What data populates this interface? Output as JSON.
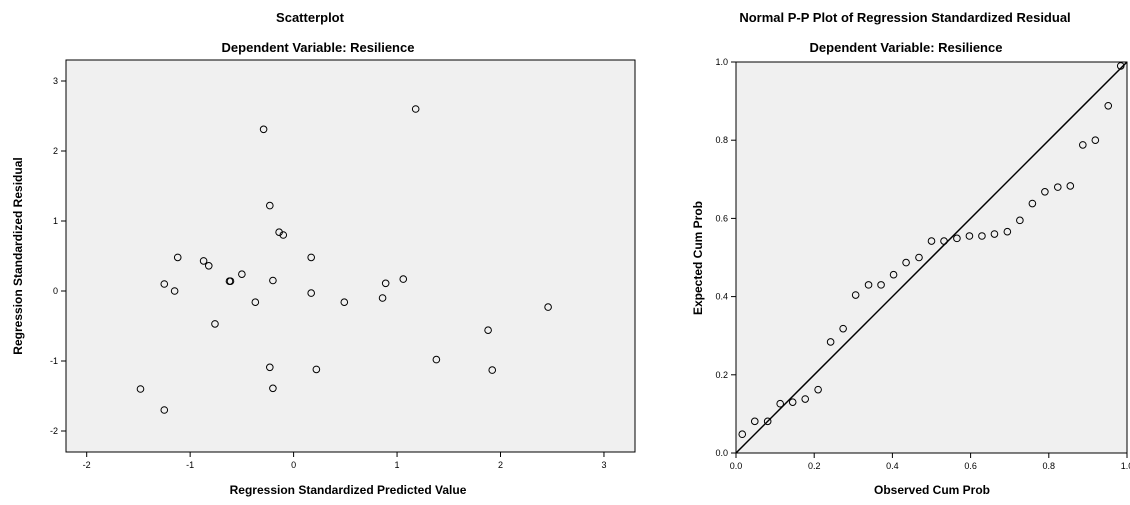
{
  "chart_data": [
    {
      "type": "scatter",
      "title": "Scatterplot",
      "subtitle": "Dependent Variable: Resilience",
      "xlabel": "Regression Standardized Predicted Value",
      "ylabel": "Regression Standardized Residual",
      "xlim": [
        -2.2,
        3.3
      ],
      "ylim": [
        -2.3,
        3.3
      ],
      "xticks": [
        "-2",
        "-1",
        "0",
        "1",
        "2",
        "3"
      ],
      "yticks": [
        "-2",
        "-1",
        "0",
        "1",
        "2",
        "3"
      ],
      "grid": false,
      "points": [
        {
          "x": -1.48,
          "y": -1.4
        },
        {
          "x": -1.25,
          "y": -1.7
        },
        {
          "x": -1.25,
          "y": 0.1
        },
        {
          "x": -1.15,
          "y": 0.0
        },
        {
          "x": -1.12,
          "y": 0.48
        },
        {
          "x": -0.87,
          "y": 0.43
        },
        {
          "x": -0.82,
          "y": 0.36
        },
        {
          "x": -0.76,
          "y": -0.47
        },
        {
          "x": -0.62,
          "y": 0.14
        },
        {
          "x": -0.61,
          "y": 0.14
        },
        {
          "x": -0.5,
          "y": 0.24
        },
        {
          "x": -0.37,
          "y": -0.16
        },
        {
          "x": -0.29,
          "y": 2.31
        },
        {
          "x": -0.23,
          "y": 1.22
        },
        {
          "x": -0.23,
          "y": -1.09
        },
        {
          "x": -0.2,
          "y": 0.15
        },
        {
          "x": -0.2,
          "y": -1.39
        },
        {
          "x": -0.14,
          "y": 0.84
        },
        {
          "x": -0.1,
          "y": 0.8
        },
        {
          "x": 0.17,
          "y": 0.48
        },
        {
          "x": 0.17,
          "y": -0.03
        },
        {
          "x": 0.22,
          "y": -1.12
        },
        {
          "x": 0.49,
          "y": -0.16
        },
        {
          "x": 0.86,
          "y": -0.1
        },
        {
          "x": 0.89,
          "y": 0.11
        },
        {
          "x": 1.06,
          "y": 0.17
        },
        {
          "x": 1.18,
          "y": 2.6
        },
        {
          "x": 1.38,
          "y": -0.98
        },
        {
          "x": 1.88,
          "y": -0.56
        },
        {
          "x": 1.92,
          "y": -1.13
        },
        {
          "x": 2.46,
          "y": -0.23
        }
      ]
    },
    {
      "type": "scatter",
      "title": "Normal P-P Plot of Regression Standardized Residual",
      "subtitle": "Dependent Variable: Resilience",
      "xlabel": "Observed Cum Prob",
      "ylabel": "Expected Cum Prob",
      "xlim": [
        0,
        1
      ],
      "ylim": [
        0,
        1
      ],
      "xticks": [
        "0.0",
        "0.2",
        "0.4",
        "0.6",
        "0.8",
        "1.0"
      ],
      "yticks": [
        "0.0",
        "0.2",
        "0.4",
        "0.6",
        "0.8",
        "1.0"
      ],
      "grid": false,
      "reference_line": [
        [
          0,
          0
        ],
        [
          1,
          1
        ]
      ],
      "points": [
        {
          "x": 0.016,
          "y": 0.048
        },
        {
          "x": 0.048,
          "y": 0.081
        },
        {
          "x": 0.081,
          "y": 0.081
        },
        {
          "x": 0.113,
          "y": 0.126
        },
        {
          "x": 0.145,
          "y": 0.13
        },
        {
          "x": 0.177,
          "y": 0.138
        },
        {
          "x": 0.21,
          "y": 0.162
        },
        {
          "x": 0.242,
          "y": 0.284
        },
        {
          "x": 0.274,
          "y": 0.318
        },
        {
          "x": 0.306,
          "y": 0.404
        },
        {
          "x": 0.339,
          "y": 0.43
        },
        {
          "x": 0.371,
          "y": 0.43
        },
        {
          "x": 0.403,
          "y": 0.456
        },
        {
          "x": 0.435,
          "y": 0.487
        },
        {
          "x": 0.468,
          "y": 0.5
        },
        {
          "x": 0.5,
          "y": 0.542
        },
        {
          "x": 0.532,
          "y": 0.542
        },
        {
          "x": 0.565,
          "y": 0.549
        },
        {
          "x": 0.597,
          "y": 0.555
        },
        {
          "x": 0.629,
          "y": 0.555
        },
        {
          "x": 0.661,
          "y": 0.56
        },
        {
          "x": 0.694,
          "y": 0.566
        },
        {
          "x": 0.726,
          "y": 0.595
        },
        {
          "x": 0.758,
          "y": 0.638
        },
        {
          "x": 0.79,
          "y": 0.668
        },
        {
          "x": 0.823,
          "y": 0.68
        },
        {
          "x": 0.855,
          "y": 0.683
        },
        {
          "x": 0.887,
          "y": 0.788
        },
        {
          "x": 0.919,
          "y": 0.8
        },
        {
          "x": 0.952,
          "y": 0.888
        },
        {
          "x": 0.984,
          "y": 0.99
        }
      ]
    }
  ]
}
